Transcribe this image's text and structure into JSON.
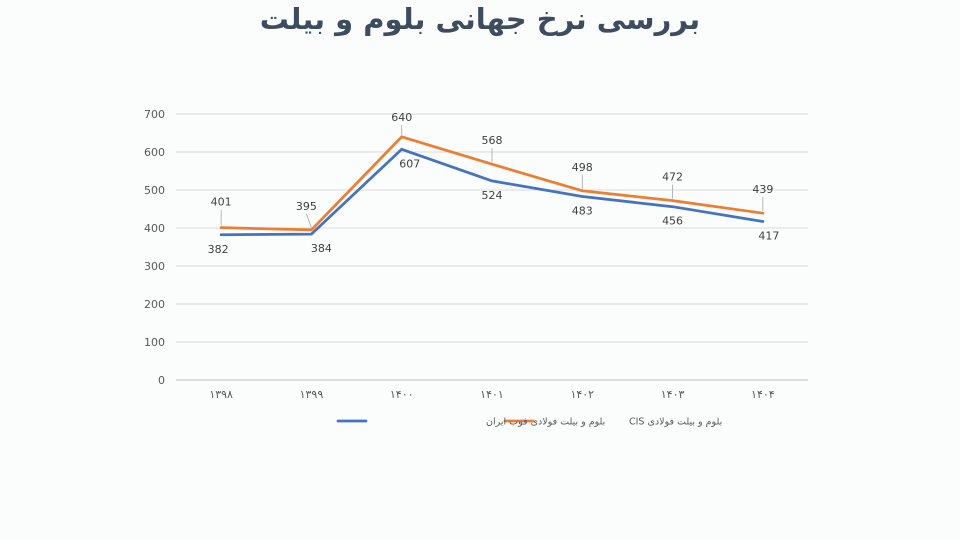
{
  "page": {
    "background": "#fbfdfd"
  },
  "chart_data": {
    "type": "line",
    "title": "بررسی نرخ جهانی بلوم و بیلت",
    "xlabel": "",
    "ylabel": "",
    "categories": [
      "۱۳۹۸",
      "۱۳۹۹",
      "۱۴۰۰",
      "۱۴۰۱",
      "۱۴۰۲",
      "۱۴۰۳",
      "۱۴۰۴"
    ],
    "ylim": [
      0,
      700
    ],
    "yticks": [
      "0",
      "100",
      "200",
      "300",
      "400",
      "500",
      "600",
      "700"
    ],
    "grid": true,
    "legend_position": "bottom",
    "series": [
      {
        "name": "بلوم و بیلت فولادی فوب ایران",
        "color": "#4472c4",
        "values": [
          382,
          384,
          607,
          524,
          483,
          456,
          417
        ],
        "labels": [
          "382",
          "384",
          "607",
          "524",
          "483",
          "456",
          "417"
        ]
      },
      {
        "name": "بلوم و بیلت فولادی CIS",
        "color": "#ed7d31",
        "values": [
          401,
          395,
          640,
          568,
          498,
          472,
          439
        ],
        "labels": [
          "401",
          "395",
          "640",
          "568",
          "498",
          "472",
          "439"
        ]
      }
    ]
  }
}
